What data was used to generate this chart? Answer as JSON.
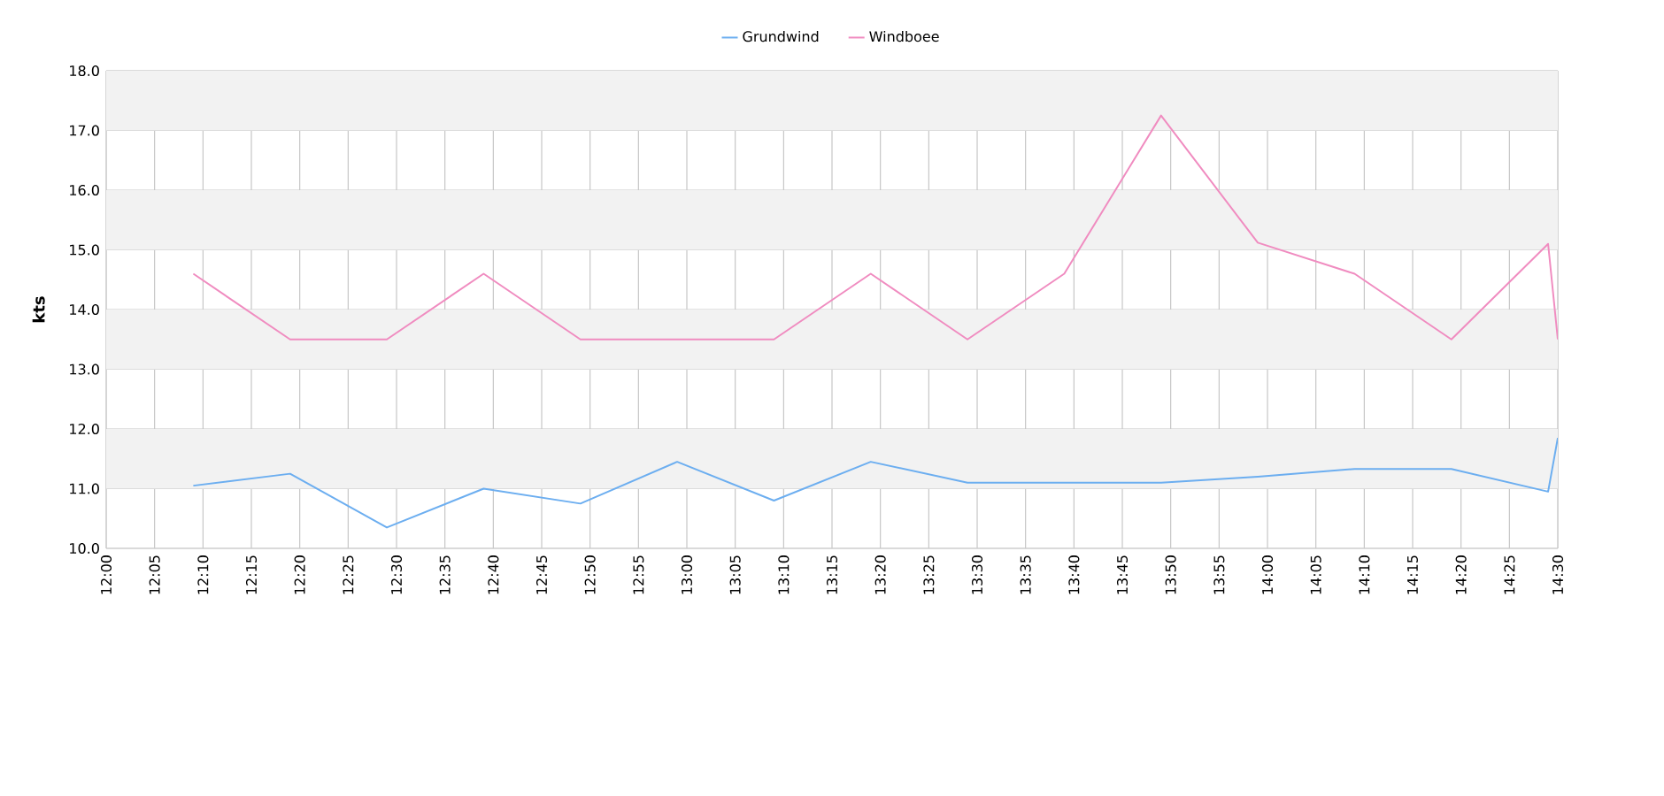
{
  "chart_data": {
    "type": "line",
    "ylabel": "kts",
    "x": [
      12.15,
      12.3167,
      12.4833,
      12.65,
      12.8167,
      12.9833,
      13.15,
      13.3167,
      13.4833,
      13.65,
      13.8167,
      13.9833,
      14.15,
      14.3167,
      14.4833,
      14.5
    ],
    "series": [
      {
        "name": "Grundwind",
        "color": "#6caef0",
        "values": [
          11.05,
          11.25,
          10.35,
          11.0,
          10.75,
          11.45,
          10.8,
          11.45,
          11.1,
          11.1,
          11.1,
          11.2,
          11.33,
          11.33,
          10.95,
          11.85
        ]
      },
      {
        "name": "Windboee",
        "color": "#f08cc0",
        "values": [
          14.6,
          13.5,
          13.5,
          14.6,
          13.5,
          13.5,
          13.5,
          14.6,
          13.5,
          14.6,
          17.25,
          15.12,
          14.6,
          13.5,
          15.1,
          13.5
        ]
      }
    ],
    "xlim": [
      12,
      14.5
    ],
    "xticks": [
      {
        "value": 12,
        "label": "12:00"
      },
      {
        "value": 12.0833,
        "label": "12:05"
      },
      {
        "value": 12.1667,
        "label": "12:10"
      },
      {
        "value": 12.25,
        "label": "12:15"
      },
      {
        "value": 12.3333,
        "label": "12:20"
      },
      {
        "value": 12.4167,
        "label": "12:25"
      },
      {
        "value": 12.5,
        "label": "12:30"
      },
      {
        "value": 12.5833,
        "label": "12:35"
      },
      {
        "value": 12.6667,
        "label": "12:40"
      },
      {
        "value": 12.75,
        "label": "12:45"
      },
      {
        "value": 12.8333,
        "label": "12:50"
      },
      {
        "value": 12.9167,
        "label": "12:55"
      },
      {
        "value": 13,
        "label": "13:00"
      },
      {
        "value": 13.0833,
        "label": "13:05"
      },
      {
        "value": 13.1667,
        "label": "13:10"
      },
      {
        "value": 13.25,
        "label": "13:15"
      },
      {
        "value": 13.3333,
        "label": "13:20"
      },
      {
        "value": 13.4167,
        "label": "13:25"
      },
      {
        "value": 13.5,
        "label": "13:30"
      },
      {
        "value": 13.5833,
        "label": "13:35"
      },
      {
        "value": 13.6667,
        "label": "13:40"
      },
      {
        "value": 13.75,
        "label": "13:45"
      },
      {
        "value": 13.8333,
        "label": "13:50"
      },
      {
        "value": 13.9167,
        "label": "13:55"
      },
      {
        "value": 14,
        "label": "14:00"
      },
      {
        "value": 14.0833,
        "label": "14:05"
      },
      {
        "value": 14.1667,
        "label": "14:10"
      },
      {
        "value": 14.25,
        "label": "14:15"
      },
      {
        "value": 14.3333,
        "label": "14:20"
      },
      {
        "value": 14.4167,
        "label": "14:25"
      },
      {
        "value": 14.5,
        "label": "14:30"
      }
    ],
    "ylim": [
      10,
      18
    ],
    "yticks": [
      {
        "value": 10,
        "label": "10.0"
      },
      {
        "value": 11,
        "label": "11.0"
      },
      {
        "value": 12,
        "label": "12.0"
      },
      {
        "value": 13,
        "label": "13.0"
      },
      {
        "value": 14,
        "label": "14.0"
      },
      {
        "value": 15,
        "label": "15.0"
      },
      {
        "value": 16,
        "label": "16.0"
      },
      {
        "value": 17,
        "label": "17.0"
      },
      {
        "value": 18,
        "label": "18.0"
      }
    ],
    "bands": [
      {
        "axis": "y",
        "from": 11,
        "to": 12,
        "color": "#f2f2f2"
      },
      {
        "axis": "y",
        "from": 13,
        "to": 14,
        "color": "#f2f2f2"
      },
      {
        "axis": "y",
        "from": 15,
        "to": 16,
        "color": "#f2f2f2"
      },
      {
        "axis": "y",
        "from": 17,
        "to": 18,
        "color": "#f2f2f2"
      }
    ],
    "grid": true,
    "legend": "top"
  }
}
